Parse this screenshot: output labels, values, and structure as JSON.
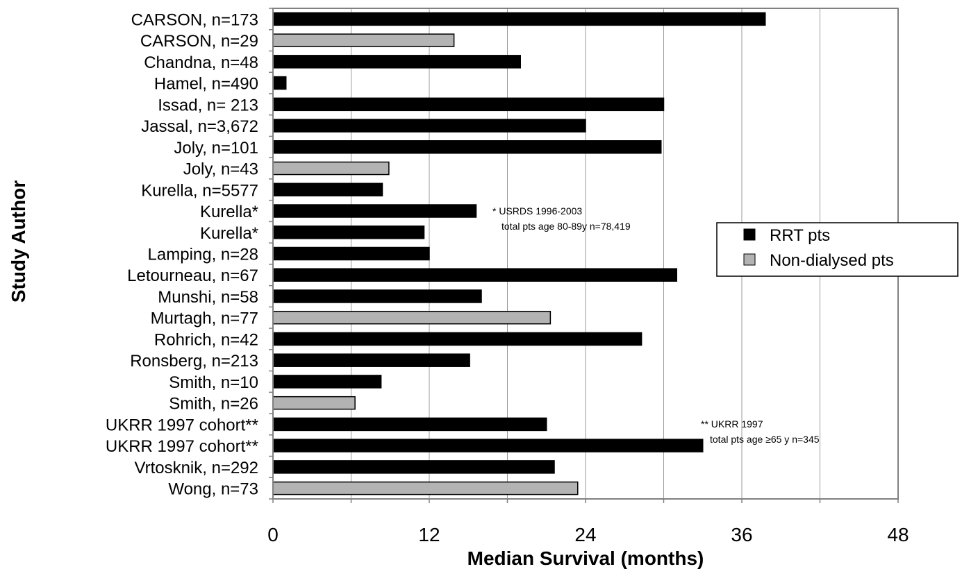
{
  "chart_data": {
    "type": "bar",
    "orientation": "horizontal",
    "xlabel": "Median Survival (months)",
    "ylabel": "Study Author",
    "xlim": [
      0,
      48
    ],
    "xticks": [
      0,
      12,
      24,
      36,
      48
    ],
    "grid": true,
    "legend_position": "right",
    "series": [
      {
        "name": "RRT pts",
        "color": "#000000"
      },
      {
        "name": "Non-dialysed pts",
        "color": "#b3b3b3"
      }
    ],
    "bars": [
      {
        "label": "CARSON, n=173",
        "value": 37.8,
        "series": 0
      },
      {
        "label": "CARSON, n=29",
        "value": 13.9,
        "series": 1
      },
      {
        "label": "Chandna, n=48",
        "value": 19.0,
        "series": 0
      },
      {
        "label": "Hamel, n=490",
        "value": 1.0,
        "series": 0
      },
      {
        "label": "Issad, n= 213",
        "value": 30.0,
        "series": 0
      },
      {
        "label": "Jassal, n=3,672",
        "value": 24.0,
        "series": 0
      },
      {
        "label": "Joly, n=101",
        "value": 29.8,
        "series": 0
      },
      {
        "label": "Joly, n=43",
        "value": 8.9,
        "series": 1
      },
      {
        "label": "Kurella, n=5577",
        "value": 8.4,
        "series": 0
      },
      {
        "label": "Kurella*",
        "value": 15.6,
        "series": 0
      },
      {
        "label": "Kurella*",
        "value": 11.6,
        "series": 0
      },
      {
        "label": "Lamping, n=28",
        "value": 12.0,
        "series": 0
      },
      {
        "label": "Letourneau, n=67",
        "value": 31.0,
        "series": 0
      },
      {
        "label": "Munshi, n=58",
        "value": 16.0,
        "series": 0
      },
      {
        "label": "Murtagh, n=77",
        "value": 21.3,
        "series": 1
      },
      {
        "label": "Rohrich, n=42",
        "value": 28.3,
        "series": 0
      },
      {
        "label": "Ronsberg, n=213",
        "value": 15.1,
        "series": 0
      },
      {
        "label": "Smith, n=10",
        "value": 8.3,
        "series": 0
      },
      {
        "label": "Smith, n=26",
        "value": 6.3,
        "series": 1
      },
      {
        "label": "UKRR 1997 cohort**",
        "value": 21.0,
        "series": 0
      },
      {
        "label": "UKRR 1997 cohort**",
        "value": 33.0,
        "series": 0
      },
      {
        "label": "Vrtosknik, n=292",
        "value": 21.6,
        "series": 0
      },
      {
        "label": "Wong, n=73",
        "value": 23.4,
        "series": 1
      }
    ],
    "annotations": [
      {
        "lines": [
          "* USRDS 1996-2003",
          "total pts age 80-89y   n=78,419"
        ]
      },
      {
        "lines": [
          "** UKRR 1997",
          "total pts age ≥65 y   n=345"
        ]
      }
    ]
  }
}
